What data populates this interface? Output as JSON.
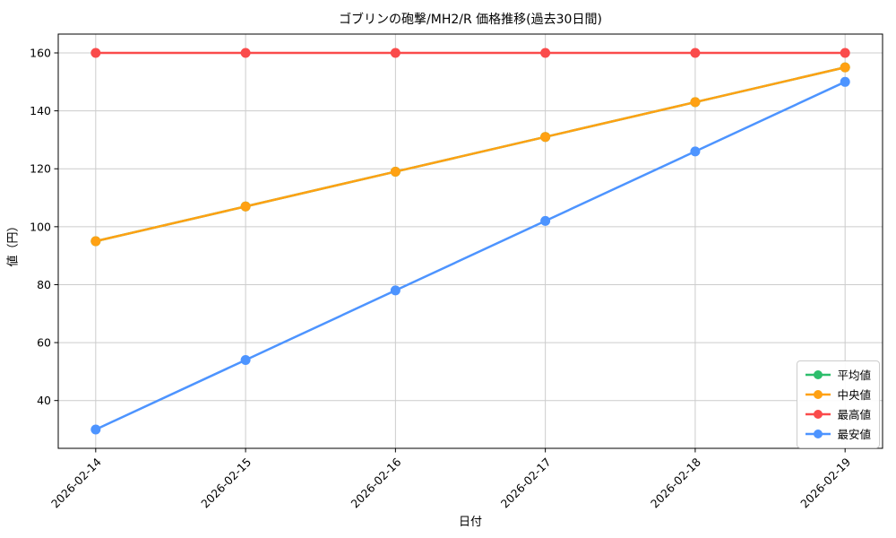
{
  "chart_data": {
    "type": "line",
    "title": "ゴブリンの砲撃/MH2/R  価格推移(過去30日間)",
    "xlabel": "日付",
    "ylabel": "値（円）",
    "categories": [
      "2026-02-14",
      "2026-02-15",
      "2026-02-16",
      "2026-02-17",
      "2026-02-18",
      "2026-02-19"
    ],
    "series": [
      {
        "key": "average",
        "name": "平均値",
        "color": "#2dbe6c",
        "values": [
          95,
          107,
          119,
          131,
          143,
          155
        ]
      },
      {
        "key": "median",
        "name": "中央値",
        "color": "#ffa113",
        "values": [
          95,
          107,
          119,
          131,
          143,
          155
        ]
      },
      {
        "key": "highest",
        "name": "最高値",
        "color": "#fa4b4b",
        "values": [
          160,
          160,
          160,
          160,
          160,
          160
        ]
      },
      {
        "key": "lowest",
        "name": "最安値",
        "color": "#4d94ff",
        "values": [
          30,
          54,
          78,
          102,
          126,
          150
        ]
      }
    ],
    "yticks": [
      40,
      60,
      80,
      100,
      120,
      140,
      160
    ],
    "ylim": [
      23.5,
      166.5
    ],
    "xlim": [
      -0.25,
      5.25
    ],
    "grid": true,
    "legend_position": "lower right"
  },
  "colors": {
    "background": "#ffffff",
    "grid": "#cccccc",
    "axis": "#000000",
    "tick_label": "#000000",
    "legend_border": "#cccccc"
  }
}
